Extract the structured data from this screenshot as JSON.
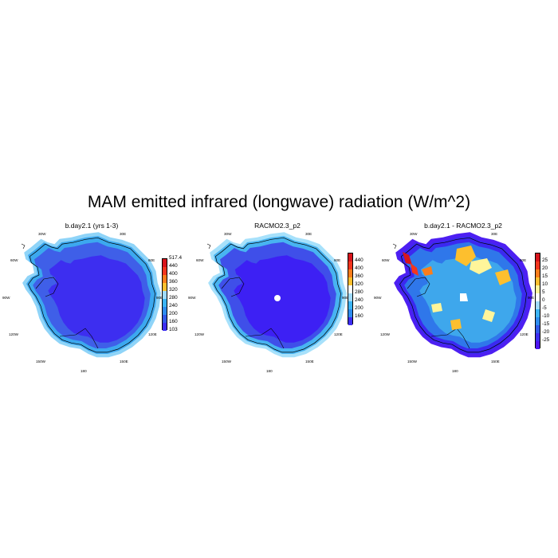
{
  "figure": {
    "title": "MAM emitted infrared (longwave) radiation (W/m^2)"
  },
  "lon_labels": {
    "w30": "30W",
    "e30": "30E",
    "w60": "60W",
    "e60": "60E",
    "w90": "90W",
    "e90": "90E",
    "w120": "120W",
    "e120": "120E",
    "w150": "150W",
    "e150": "150E",
    "s180": "180"
  },
  "panels": [
    {
      "title": "b.day2.1 (yrs 1-3)",
      "interior_color": "#3d2ef0",
      "shelf_color": "#3f5fe8",
      "coast_color": "#3ca8ef",
      "ocean_color": "#8fd4f8",
      "colorbar": {
        "labels": [
          "517.4",
          "440",
          "400",
          "360",
          "320",
          "280",
          "240",
          "200",
          "160",
          "103"
        ],
        "colors": [
          "#d8151c",
          "#f2361e",
          "#fb7d1b",
          "#fdbf2e",
          "#9fdafc",
          "#3cb4f4",
          "#2e8cee",
          "#3159e8",
          "#3d2ef0"
        ]
      }
    },
    {
      "title": "RACMO2.3_p2",
      "interior_color": "#3d20f4",
      "shelf_color": "#3f4fe9",
      "coast_color": "#48b4f1",
      "ocean_color": "#a7e1fb",
      "colorbar": {
        "labels": [
          "440",
          "400",
          "360",
          "320",
          "280",
          "240",
          "200",
          "160"
        ],
        "colors": [
          "#d8151c",
          "#f2361e",
          "#fb7d1b",
          "#fdbf2e",
          "#ffffff",
          "#9fdafc",
          "#3cb4f4",
          "#2e8cee",
          "#3d2ef0"
        ]
      }
    },
    {
      "title": "b.day2.1 - RACMO2.3_p2",
      "interior_color": "#3ea7ec",
      "shelf_color": "#2f77ea",
      "coast_color": "#3b29f0",
      "ocean_color": "#4d1ff2",
      "colorbar": {
        "labels": [
          "25",
          "20",
          "15",
          "10",
          "5",
          "0",
          "-5",
          "-10",
          "-15",
          "-20",
          "-25"
        ],
        "colors": [
          "#d8151c",
          "#f2361e",
          "#fb7d1b",
          "#fdbf2e",
          "#fff59a",
          "#ffffff",
          "#9fdafc",
          "#3cb4f4",
          "#2e8cee",
          "#3159e8",
          "#3d2ef0",
          "#4d14f0"
        ]
      }
    }
  ]
}
